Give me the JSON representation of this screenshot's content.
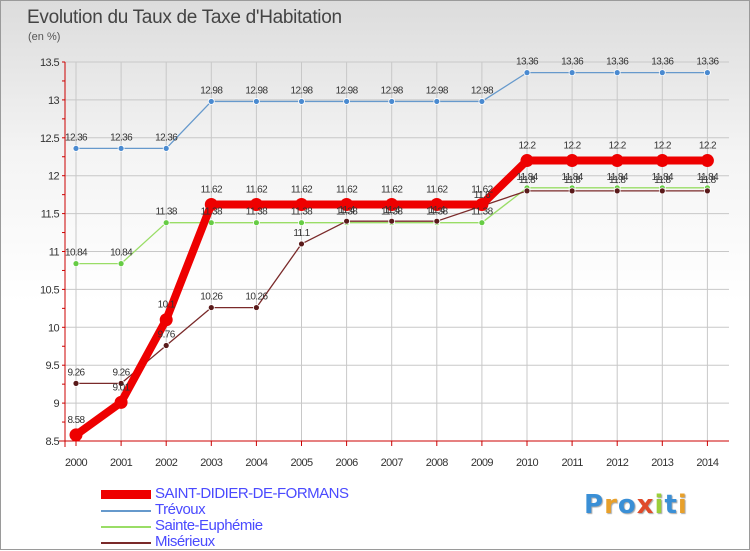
{
  "title": "Evolution du Taux de Taxe d'Habitation",
  "unit_label": "(en %)",
  "logo_text": "Proxiti",
  "colors": {
    "axis": "#cc0000",
    "grid": "#c8c8c8"
  },
  "chart_data": {
    "type": "line",
    "title": "Evolution du Taux de Taxe d'Habitation",
    "ylabel": "(en %)",
    "xlabel": "",
    "x": [
      "2000",
      "2001",
      "2002",
      "2003",
      "2004",
      "2005",
      "2006",
      "2007",
      "2008",
      "2009",
      "2010",
      "2011",
      "2012",
      "2013",
      "2014"
    ],
    "ylim": [
      8.5,
      13.5
    ],
    "yticks": [
      "8.5",
      "9",
      "9.5",
      "10",
      "10.5",
      "11",
      "11.5",
      "12",
      "12.5",
      "13",
      "13.5"
    ],
    "grid": true,
    "legend_position": "bottom-left",
    "series": [
      {
        "name": "SAINT-DIDIER-DE-FORMANS",
        "color": "#ee0000",
        "values": [
          8.58,
          9.01,
          10.1,
          11.62,
          11.62,
          11.62,
          11.62,
          11.62,
          11.62,
          11.62,
          12.2,
          12.2,
          12.2,
          12.2,
          12.2
        ],
        "labels": [
          "8.58",
          "9.01",
          "10.1",
          "11.62",
          "11.62",
          "11.62",
          "11.62",
          "11.62",
          "11.62",
          "11.62",
          "12.2",
          "12.2",
          "12.2",
          "12.2",
          "12.2"
        ]
      },
      {
        "name": "Trévoux",
        "color": "#6699cc",
        "values": [
          12.36,
          12.36,
          12.36,
          12.98,
          12.98,
          12.98,
          12.98,
          12.98,
          12.98,
          12.98,
          13.36,
          13.36,
          13.36,
          13.36,
          13.36
        ],
        "labels": [
          "12.36",
          "12.36",
          "12.36",
          "12.98",
          "12.98",
          "12.98",
          "12.98",
          "12.98",
          "12.98",
          "12.98",
          "13.36",
          "13.36",
          "13.36",
          "13.36",
          "13.36"
        ]
      },
      {
        "name": "Sainte-Euphémie",
        "color": "#99dd66",
        "values": [
          10.84,
          10.84,
          11.38,
          11.38,
          11.38,
          11.38,
          11.38,
          11.38,
          11.38,
          11.38,
          11.84,
          11.84,
          11.84,
          11.84,
          11.84
        ],
        "labels": [
          "10.84",
          "10.84",
          "11.38",
          "11.38",
          "11.38",
          "11.38",
          "11.38",
          "11.38",
          "11.38",
          "11.38",
          "11.84",
          "11.84",
          "11.84",
          "11.84",
          "11.84"
        ]
      },
      {
        "name": "Misérieux",
        "color": "#7a2a2a",
        "values": [
          9.26,
          9.26,
          9.76,
          10.26,
          10.26,
          11.1,
          11.4,
          11.4,
          11.4,
          11.6,
          11.8,
          11.8,
          11.8,
          11.8,
          11.8
        ],
        "labels": [
          "9.26",
          "9.26",
          "9.76",
          "10.26",
          "10.26",
          "11.1",
          "11.4",
          "11.4",
          "11.4",
          "11.6",
          "11.8",
          "11.8",
          "11.8",
          "11.8",
          "11.8"
        ]
      }
    ]
  }
}
